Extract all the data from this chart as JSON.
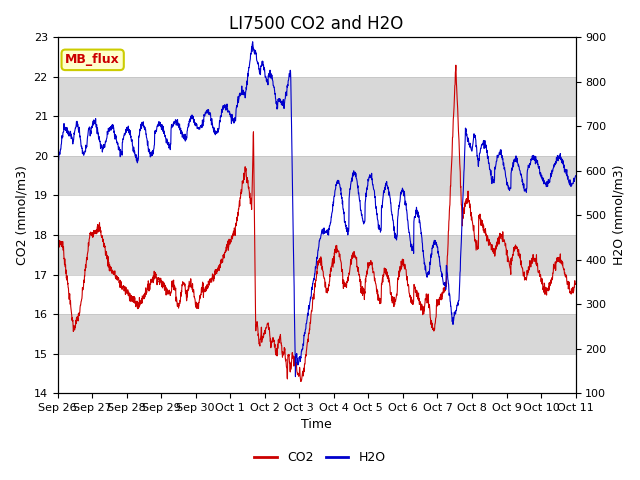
{
  "title": "LI7500 CO2 and H2O",
  "xlabel": "Time",
  "ylabel_left": "CO2 (mmol/m3)",
  "ylabel_right": "H2O (mmol/m3)",
  "ylim_left": [
    14.0,
    23.0
  ],
  "ylim_right": [
    100,
    900
  ],
  "yticks_left": [
    14.0,
    15.0,
    16.0,
    17.0,
    18.0,
    19.0,
    20.0,
    21.0,
    22.0,
    23.0
  ],
  "yticks_right": [
    100,
    200,
    300,
    400,
    500,
    600,
    700,
    800,
    900
  ],
  "xtick_labels": [
    "Sep 26",
    "Sep 27",
    "Sep 28",
    "Sep 29",
    "Sep 30",
    "Oct 1",
    "Oct 2",
    "Oct 3",
    "Oct 4",
    "Oct 5",
    "Oct 6",
    "Oct 7",
    "Oct 8",
    "Oct 9",
    "Oct 10",
    "Oct 11"
  ],
  "co2_color": "#cc0000",
  "h2o_color": "#0000cc",
  "fig_bg_color": "#ffffff",
  "plot_bg_color": "#d8d8d8",
  "stripe_color": "#ffffff",
  "grid_color": "#c0c0c0",
  "legend_label_co2": "CO2",
  "legend_label_h2o": "H2O",
  "annotation_text": "MB_flux",
  "annotation_bg": "#ffffcc",
  "annotation_border": "#cccc00",
  "annotation_text_color": "#cc0000",
  "title_fontsize": 12,
  "axis_fontsize": 9,
  "tick_fontsize": 8
}
